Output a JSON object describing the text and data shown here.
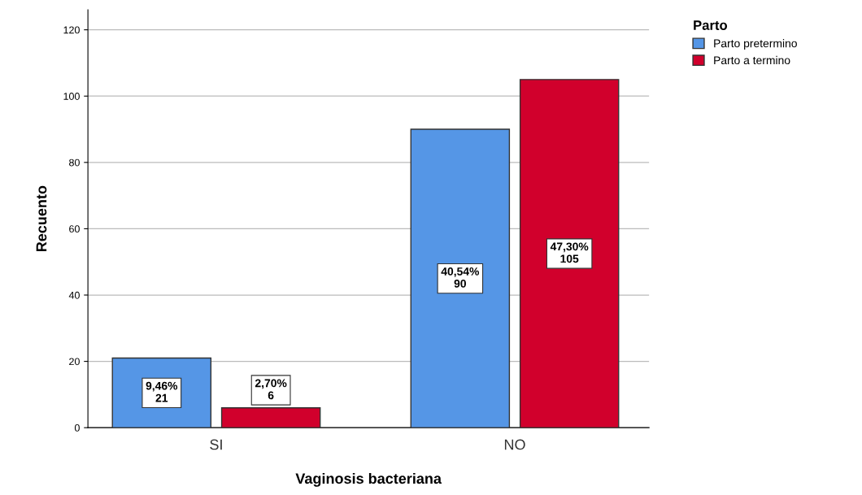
{
  "chart_data": {
    "type": "bar",
    "xlabel": "Vaginosis bacteriana",
    "ylabel": "Recuento",
    "legend_title": "Parto",
    "categories": [
      "SI",
      "NO"
    ],
    "series": [
      {
        "name": "Parto pretermino",
        "color": "#5596e6",
        "values": [
          21,
          90
        ],
        "value_labels": [
          "9,46%\n21",
          "40,54%\n90"
        ]
      },
      {
        "name": "Parto a termino",
        "color": "#d1002c",
        "values": [
          6,
          105
        ],
        "value_labels": [
          "2,70%\n6",
          "47,30%\n105"
        ]
      }
    ],
    "ylim": [
      0,
      126
    ],
    "yticks": [
      0,
      20,
      40,
      60,
      80,
      100,
      120
    ],
    "grid": "y",
    "legend": "top right"
  }
}
